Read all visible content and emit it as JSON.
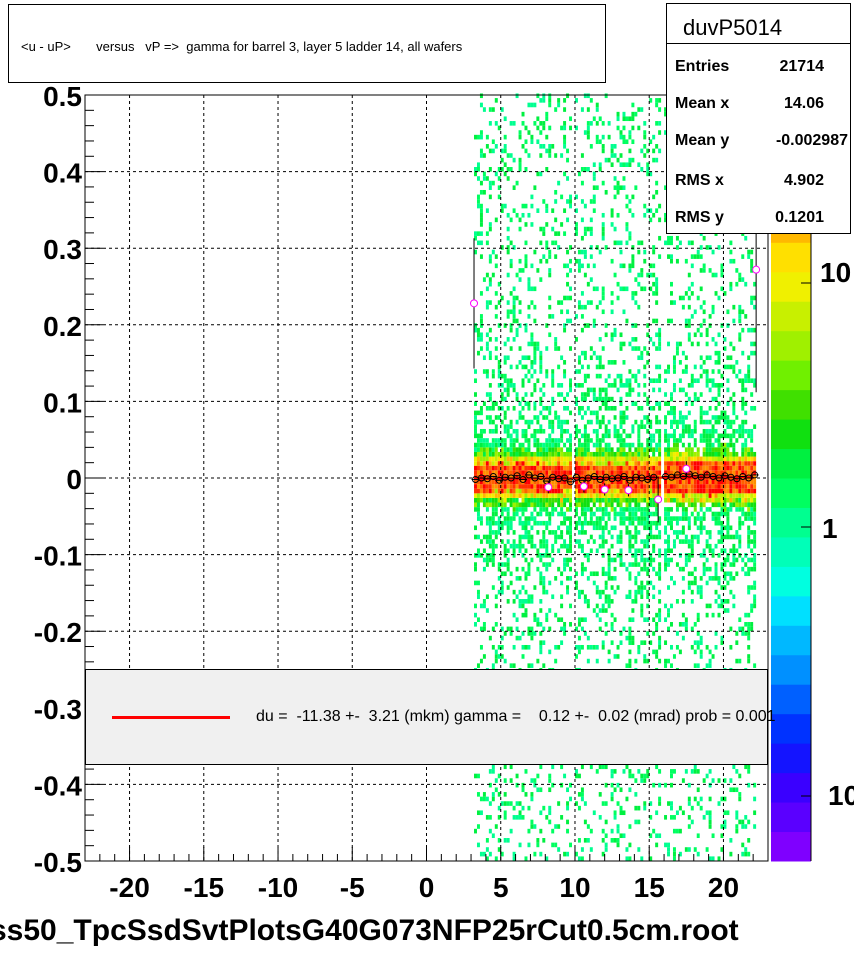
{
  "histogram": {
    "name": "duvP5014",
    "title": "<u - uP>       versus   vP =>  gamma for barrel 3, layer 5 ladder 14, all wafers",
    "stats": [
      {
        "key": "Entries",
        "value": "21714"
      },
      {
        "key": "Mean x",
        "value": "14.06"
      },
      {
        "key": "Mean y",
        "value": "-0.002987"
      },
      {
        "key": "RMS x",
        "value": "4.902"
      },
      {
        "key": "RMS y",
        "value": "0.1201"
      }
    ]
  },
  "legend": {
    "line_color": "#ff0000",
    "text": "du =  -11.38 +-  3.21 (mkm) gamma =    0.12 +-  0.02 (mrad) prob = 0.001"
  },
  "file_label": "ss50_TpcSsdSvtPlotsG40G073NFP25rCut0.5cm.root",
  "chart_data": {
    "type": "heatmap",
    "title": "<u - uP>       versus   vP =>  gamma for barrel 3, layer 5 ladder 14, all wafers",
    "xlabel": "",
    "ylabel": "",
    "xlim": [
      -23,
      23
    ],
    "ylim": [
      -0.5,
      0.5
    ],
    "x_ticks": [
      -20,
      -15,
      -10,
      -5,
      0,
      5,
      10,
      15,
      20
    ],
    "x_tick_labels": [
      "-20",
      "-15",
      "-10",
      "-5",
      "0",
      "5",
      "10",
      "15",
      "20"
    ],
    "y_ticks": [
      0.5,
      0.4,
      0.3,
      0.2,
      0.1,
      0,
      -0.1,
      -0.2,
      -0.3,
      -0.4,
      -0.5
    ],
    "y_tick_labels": [
      "0.5",
      "0.4",
      "0.3",
      "0.2",
      "0.1",
      "0",
      "-0.1",
      "-0.2",
      "-0.3",
      "-0.4",
      "-0.5"
    ],
    "grid": true,
    "occupied_x_ranges": [
      [
        3.2,
        9.6
      ],
      [
        10.0,
        15.6
      ],
      [
        16.0,
        22.0
      ]
    ],
    "colorbar": {
      "scale": "log",
      "labels": [
        "10",
        "1",
        "10"
      ],
      "colors": [
        "#7f00ff",
        "#5a00ff",
        "#3a00ff",
        "#1414ff",
        "#0032ff",
        "#0060ff",
        "#0090ff",
        "#00b8ff",
        "#00e0ff",
        "#00ffe0",
        "#00ffb8",
        "#00ff90",
        "#00ff60",
        "#00f040",
        "#10e010",
        "#40e000",
        "#70f000",
        "#a0f000",
        "#c8f000",
        "#f0f000",
        "#ffe000",
        "#ffb800",
        "#ff9000",
        "#ff6000",
        "#ff3000",
        "#ff0000"
      ]
    },
    "profile_points": [
      {
        "x": 3.3,
        "y": -0.002
      },
      {
        "x": 3.7,
        "y": 0.0
      },
      {
        "x": 4.1,
        "y": -0.001
      },
      {
        "x": 4.5,
        "y": 0.002
      },
      {
        "x": 4.9,
        "y": -0.003
      },
      {
        "x": 5.3,
        "y": 0.001
      },
      {
        "x": 5.7,
        "y": 0.0
      },
      {
        "x": 6.1,
        "y": 0.003
      },
      {
        "x": 6.5,
        "y": -0.002
      },
      {
        "x": 6.9,
        "y": 0.004
      },
      {
        "x": 7.3,
        "y": 0.0
      },
      {
        "x": 7.7,
        "y": 0.002
      },
      {
        "x": 8.1,
        "y": -0.004
      },
      {
        "x": 8.5,
        "y": 0.001
      },
      {
        "x": 8.9,
        "y": -0.001
      },
      {
        "x": 9.3,
        "y": 0.0
      },
      {
        "x": 9.7,
        "y": -0.005
      },
      {
        "x": 10.1,
        "y": 0.001
      },
      {
        "x": 10.5,
        "y": -0.003
      },
      {
        "x": 10.9,
        "y": 0.0
      },
      {
        "x": 11.3,
        "y": 0.002
      },
      {
        "x": 11.7,
        "y": -0.002
      },
      {
        "x": 12.1,
        "y": 0.001
      },
      {
        "x": 12.5,
        "y": -0.001
      },
      {
        "x": 12.9,
        "y": 0.0
      },
      {
        "x": 13.3,
        "y": 0.002
      },
      {
        "x": 13.7,
        "y": -0.003
      },
      {
        "x": 14.1,
        "y": 0.001
      },
      {
        "x": 14.5,
        "y": 0.0
      },
      {
        "x": 14.9,
        "y": -0.002
      },
      {
        "x": 15.3,
        "y": 0.001
      },
      {
        "x": 16.1,
        "y": 0.002
      },
      {
        "x": 16.5,
        "y": 0.001
      },
      {
        "x": 16.9,
        "y": 0.004
      },
      {
        "x": 17.3,
        "y": 0.002
      },
      {
        "x": 17.7,
        "y": 0.005
      },
      {
        "x": 18.1,
        "y": 0.003
      },
      {
        "x": 18.5,
        "y": 0.001
      },
      {
        "x": 18.9,
        "y": 0.004
      },
      {
        "x": 19.3,
        "y": 0.002
      },
      {
        "x": 19.7,
        "y": 0.0
      },
      {
        "x": 20.1,
        "y": 0.003
      },
      {
        "x": 20.5,
        "y": 0.001
      },
      {
        "x": 20.9,
        "y": -0.001
      },
      {
        "x": 21.3,
        "y": 0.002
      },
      {
        "x": 21.7,
        "y": 0.0
      },
      {
        "x": 22.1,
        "y": 0.004
      }
    ],
    "magenta_points": [
      {
        "x": 3.2,
        "y": 0.228,
        "err": 0.085
      },
      {
        "x": 22.2,
        "y": 0.272,
        "err": 0.16
      },
      {
        "x": 15.6,
        "y": -0.028,
        "err": 0.03
      },
      {
        "x": 17.5,
        "y": 0.012,
        "err": 0.01
      },
      {
        "x": 12.0,
        "y": -0.015,
        "err": 0.008
      },
      {
        "x": 13.6,
        "y": -0.016,
        "err": 0.008
      },
      {
        "x": 8.2,
        "y": -0.012,
        "err": 0.008
      },
      {
        "x": 10.6,
        "y": -0.011,
        "err": 0.008
      }
    ],
    "fit_line": {
      "color": "#ff0000",
      "x": [
        3.2,
        22.0
      ],
      "y": [
        -0.0012,
        0.0011
      ]
    }
  }
}
